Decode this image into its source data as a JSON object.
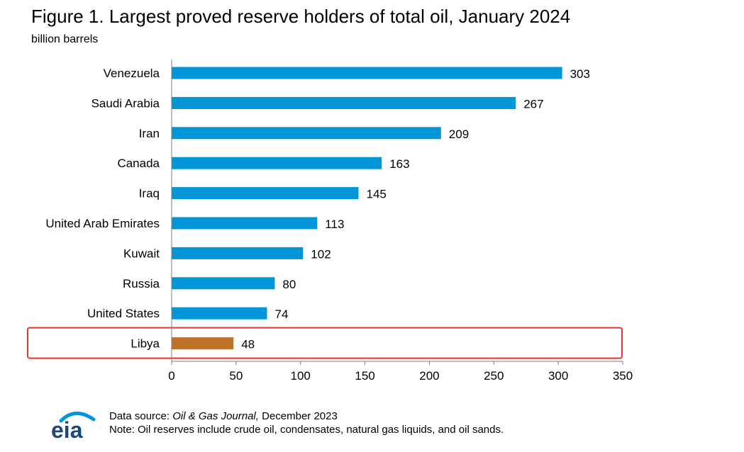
{
  "chart_data": {
    "type": "bar",
    "orientation": "horizontal",
    "title": "Figure 1. Largest proved reserve holders of total oil, January 2024",
    "subtitle": "billion barrels",
    "categories": [
      "Venezuela",
      "Saudi Arabia",
      "Iran",
      "Canada",
      "Iraq",
      "United Arab Emirates",
      "Kuwait",
      "Russia",
      "United States",
      "Libya"
    ],
    "values": [
      303,
      267,
      209,
      163,
      145,
      113,
      102,
      80,
      74,
      48
    ],
    "highlighted": "Libya",
    "xlim": [
      0,
      350
    ],
    "xticks": [
      0,
      50,
      100,
      150,
      200,
      250,
      300,
      350
    ],
    "xlabel": "",
    "ylabel": "",
    "grid": false,
    "colors": {
      "bar": "#0096D7",
      "highlight_bar": "#BD732A",
      "highlight_box": "#E8312F",
      "axis": "#7F7F7F"
    }
  },
  "footer": {
    "source_prefix": "Data source: ",
    "source_italic": "Oil & Gas Journal,",
    "source_suffix": " December 2023",
    "note": "Note: Oil reserves include crude oil, condensates, natural gas liquids, and oil sands."
  },
  "logo": {
    "text": "eia",
    "color": "#1B4A7A",
    "arc_color": "#0096D7"
  }
}
